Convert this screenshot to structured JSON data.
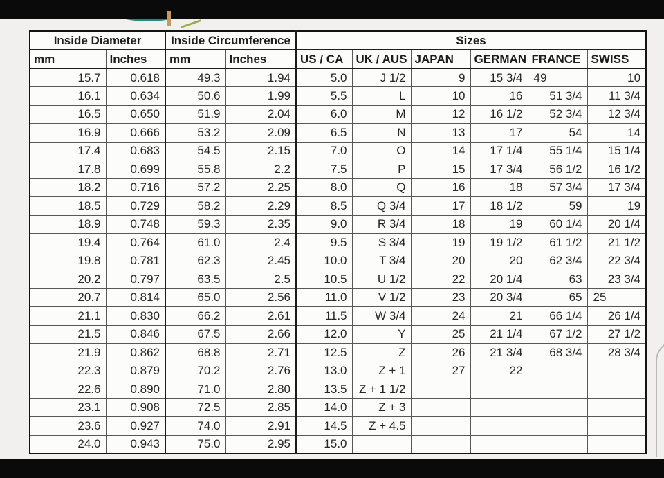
{
  "colors": {
    "bar_black": "#0a0a0a",
    "logo_teal": "#26877c",
    "logo_gold": "#c49a5e",
    "table_border_dark": "#131313"
  },
  "logo": {
    "arc_icon": "partial-ring-logo"
  },
  "table": {
    "group_headers": [
      {
        "label": "Inside Diameter",
        "span": 2
      },
      {
        "label": "Inside Circumference",
        "span": 2
      },
      {
        "label": "Sizes",
        "span": 6
      }
    ],
    "column_headers": [
      "mm",
      "Inches",
      "mm",
      "Inches",
      "US / CA",
      "UK / AUS",
      "JAPAN",
      "GERMAN",
      "FRANCE",
      "SWISS"
    ],
    "rows": [
      [
        "15.7",
        "0.618",
        "49.3",
        "1.94",
        "5.0",
        "J 1/2",
        "9",
        "15 3/4",
        "49",
        "10"
      ],
      [
        "16.1",
        "0.634",
        "50.6",
        "1.99",
        "5.5",
        "L",
        "10",
        "16",
        "51 3/4",
        "11 3/4"
      ],
      [
        "16.5",
        "0.650",
        "51.9",
        "2.04",
        "6.0",
        "M",
        "12",
        "16 1/2",
        "52 3/4",
        "12 3/4"
      ],
      [
        "16.9",
        "0.666",
        "53.2",
        "2.09",
        "6.5",
        "N",
        "13",
        "17",
        "54",
        "14"
      ],
      [
        "17.4",
        "0.683",
        "54.5",
        "2.15",
        "7.0",
        "O",
        "14",
        "17 1/4",
        "55 1/4",
        "15 1/4"
      ],
      [
        "17.8",
        "0.699",
        "55.8",
        "2.2",
        "7.5",
        "P",
        "15",
        "17 3/4",
        "56 1/2",
        "16 1/2"
      ],
      [
        "18.2",
        "0.716",
        "57.2",
        "2.25",
        "8.0",
        "Q",
        "16",
        "18",
        "57 3/4",
        "17 3/4"
      ],
      [
        "18.5",
        "0.729",
        "58.2",
        "2.29",
        "8.5",
        "Q 3/4",
        "17",
        "18 1/2",
        "59",
        "19"
      ],
      [
        "18.9",
        "0.748",
        "59.3",
        "2.35",
        "9.0",
        "R 3/4",
        "18",
        "19",
        "60 1/4",
        "20 1/4"
      ],
      [
        "19.4",
        "0.764",
        "61.0",
        "2.4",
        "9.5",
        "S 3/4",
        "19",
        "19 1/2",
        "61 1/2",
        "21 1/2"
      ],
      [
        "19.8",
        "0.781",
        "62.3",
        "2.45",
        "10.0",
        "T 3/4",
        "20",
        "20",
        "62 3/4",
        "22 3/4"
      ],
      [
        "20.2",
        "0.797",
        "63.5",
        "2.5",
        "10.5",
        "U 1/2",
        "22",
        "20 1/4",
        "63",
        "23 3/4"
      ],
      [
        "20.7",
        "0.814",
        "65.0",
        "2.56",
        "11.0",
        "V 1/2",
        "23",
        "20 3/4",
        "65",
        "25"
      ],
      [
        "21.1",
        "0.830",
        "66.2",
        "2.61",
        "11.5",
        "W 3/4",
        "24",
        "21",
        "66 1/4",
        "26 1/4"
      ],
      [
        "21.5",
        "0.846",
        "67.5",
        "2.66",
        "12.0",
        "Y",
        "25",
        "21 1/4",
        "67 1/2",
        "27 1/2"
      ],
      [
        "21.9",
        "0.862",
        "68.8",
        "2.71",
        "12.5",
        "Z",
        "26",
        "21 3/4",
        "68 3/4",
        "28 3/4"
      ],
      [
        "22.3",
        "0.879",
        "70.2",
        "2.76",
        "13.0",
        "Z + 1",
        "27",
        "22",
        "",
        ""
      ],
      [
        "22.6",
        "0.890",
        "71.0",
        "2.80",
        "13.5",
        "Z + 1 1/2",
        "",
        "",
        "",
        ""
      ],
      [
        "23.1",
        "0.908",
        "72.5",
        "2.85",
        "14.0",
        "Z + 3",
        "",
        "",
        "",
        ""
      ],
      [
        "23.6",
        "0.927",
        "74.0",
        "2.91",
        "14.5",
        "Z + 4.5",
        "",
        "",
        "",
        ""
      ],
      [
        "24.0",
        "0.943",
        "75.0",
        "2.95",
        "15.0",
        "",
        "",
        "",
        "",
        ""
      ]
    ]
  }
}
